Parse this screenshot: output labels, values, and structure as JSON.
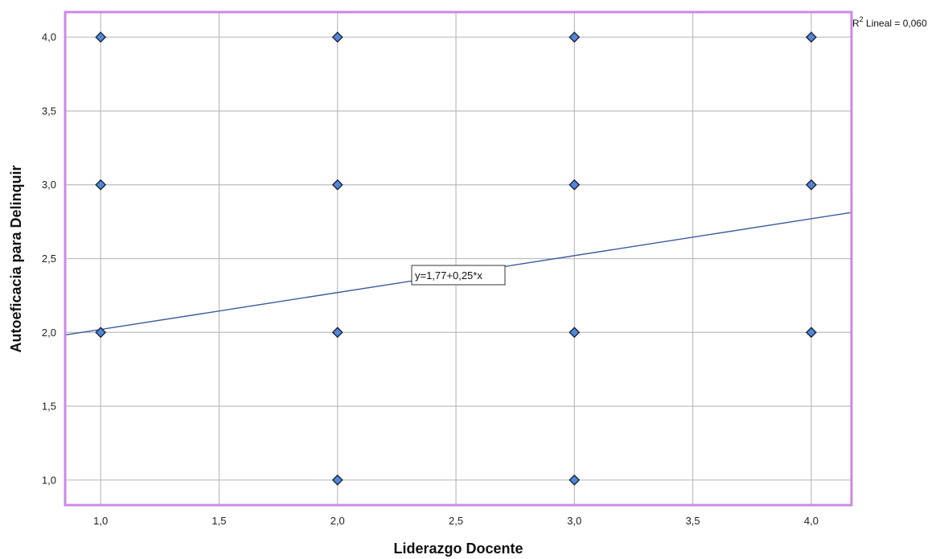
{
  "chart_data": {
    "type": "scatter",
    "xlabel": "Liderazgo Docente",
    "ylabel": "Autoeficacia para Delinquir",
    "xlim": [
      0.85,
      4.17
    ],
    "ylim": [
      0.83,
      4.17
    ],
    "x_ticks": [
      1.0,
      1.5,
      2.0,
      2.5,
      3.0,
      3.5,
      4.0
    ],
    "y_ticks": [
      1.0,
      1.5,
      2.0,
      2.5,
      3.0,
      3.5,
      4.0
    ],
    "x_tick_labels": [
      "1,0",
      "1,5",
      "2,0",
      "2,5",
      "3,0",
      "3,5",
      "4,0"
    ],
    "y_tick_labels": [
      "1,0",
      "1,5",
      "2,0",
      "2,5",
      "3,0",
      "3,5",
      "4,0"
    ],
    "grid": true,
    "points": [
      {
        "x": 1,
        "y": 4
      },
      {
        "x": 1,
        "y": 3
      },
      {
        "x": 1,
        "y": 2
      },
      {
        "x": 2,
        "y": 4
      },
      {
        "x": 2,
        "y": 3
      },
      {
        "x": 2,
        "y": 2
      },
      {
        "x": 2,
        "y": 1
      },
      {
        "x": 3,
        "y": 4
      },
      {
        "x": 3,
        "y": 3
      },
      {
        "x": 3,
        "y": 2
      },
      {
        "x": 3,
        "y": 1
      },
      {
        "x": 4,
        "y": 4
      },
      {
        "x": 4,
        "y": 3
      },
      {
        "x": 4,
        "y": 2
      }
    ],
    "fit_line": {
      "intercept": 1.77,
      "slope": 0.25
    },
    "equation_label": "y=1,77+0,25*x",
    "r2_prefix": "R",
    "r2_sup": "2",
    "r2_text": " Lineal = 0,060",
    "colors": {
      "frame": "#cc88e8",
      "grid": "#bdbdbd",
      "point_fill": "#4e88d6",
      "point_stroke": "#1a1a2e",
      "fit_line": "#3b5b9a"
    }
  }
}
